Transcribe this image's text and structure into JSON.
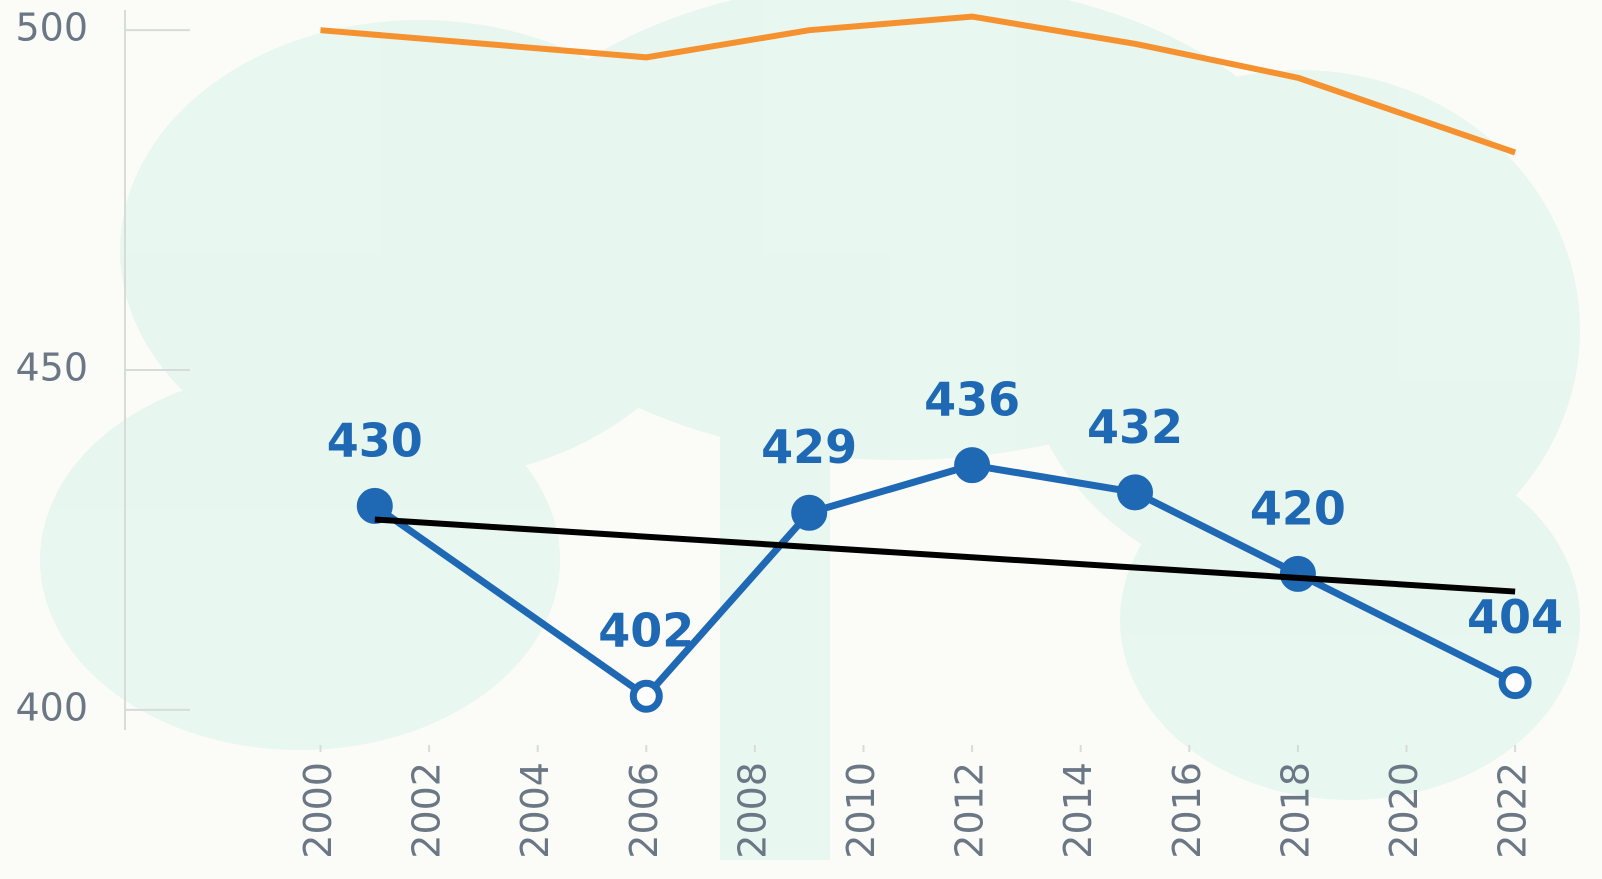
{
  "chart_data": {
    "type": "line",
    "xlim": [
      1996.4,
      2023.6
    ],
    "xticks": [
      2000,
      2002,
      2004,
      2006,
      2008,
      2010,
      2012,
      2014,
      2016,
      2018,
      2020,
      2022
    ],
    "ylim": [
      396,
      504
    ],
    "yticks": [
      400,
      450,
      500
    ],
    "series": [
      {
        "color": "#f5922f",
        "x": [
          2000,
          2006,
          2009,
          2012,
          2015,
          2018,
          2022
        ],
        "values": [
          500,
          496,
          500,
          502,
          498,
          493,
          482
        ]
      },
      {
        "color": "#1f68b4",
        "x": [
          2001,
          2006,
          2009,
          2012,
          2015,
          2018,
          2022
        ],
        "values": [
          430,
          402,
          429,
          436,
          432,
          420,
          404
        ],
        "marker_filled": [
          true,
          false,
          true,
          true,
          true,
          true,
          false
        ],
        "show_labels": true
      },
      {
        "color": "#000000",
        "x": [
          2001,
          2022
        ],
        "values": [
          428,
          417.4
        ]
      }
    ]
  }
}
